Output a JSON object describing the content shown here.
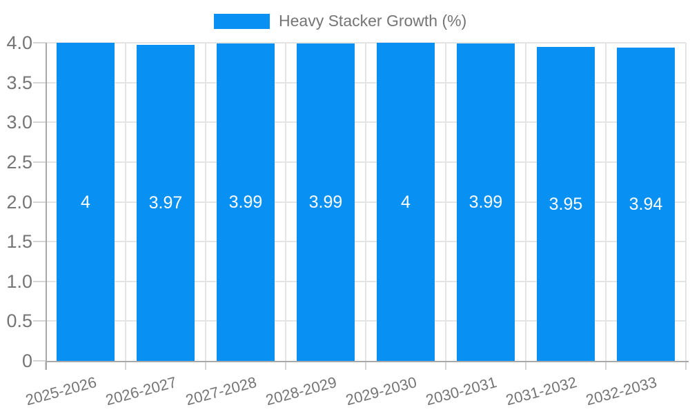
{
  "chart_data": {
    "type": "bar",
    "title": "Heavy Stacker Growth (%)",
    "xlabel": "",
    "ylabel": "",
    "categories": [
      "2025-2026",
      "2026-2027",
      "2027-2028",
      "2028-2029",
      "2029-2030",
      "2030-2031",
      "2031-2032",
      "2032-2033"
    ],
    "series": [
      {
        "name": "Heavy Stacker Growth (%)",
        "values": [
          4,
          3.97,
          3.99,
          3.99,
          4,
          3.99,
          3.95,
          3.94
        ],
        "value_labels": [
          "4",
          "3.97",
          "3.99",
          "3.99",
          "4",
          "3.99",
          "3.95",
          "3.94"
        ]
      }
    ],
    "ylim": [
      0,
      4
    ],
    "y_ticks": [
      {
        "value": 0,
        "label": "0"
      },
      {
        "value": 0.5,
        "label": "0.5"
      },
      {
        "value": 1,
        "label": "1.0"
      },
      {
        "value": 1.5,
        "label": "1.5"
      },
      {
        "value": 2,
        "label": "2.0"
      },
      {
        "value": 2.5,
        "label": "2.5"
      },
      {
        "value": 3,
        "label": "3.0"
      },
      {
        "value": 3.5,
        "label": "3.5"
      },
      {
        "value": 4,
        "label": "4.0"
      }
    ],
    "grid": true,
    "legend_position": "top",
    "colors": {
      "bar": "#0891f2",
      "text": "#757575",
      "value_text": "#ffffff",
      "grid": "#e4e4e4",
      "tick": "#d4d4d4",
      "axis": "#a8a8a8",
      "background": "#ffffff"
    }
  }
}
